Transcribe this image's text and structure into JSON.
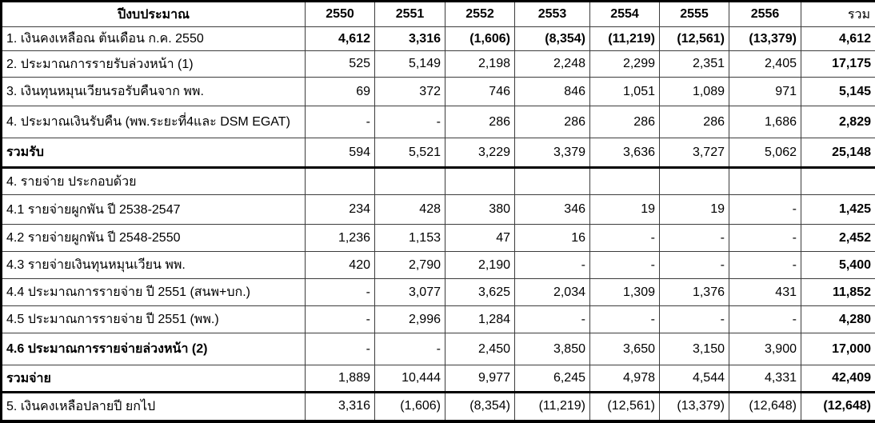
{
  "table": {
    "header": {
      "label_col": "ปีงบประมาณ",
      "years": [
        "2550",
        "2551",
        "2552",
        "2553",
        "2554",
        "2555",
        "2556"
      ],
      "total_label": "รวม"
    },
    "rows": [
      {
        "label": "1.  เงินคงเหลือณ ต้นเดือน ก.ค. 2550",
        "values": [
          "4,612",
          "3,316",
          "(1,606)",
          "(8,354)",
          "(11,219)",
          "(12,561)",
          "(13,379)"
        ],
        "total": "4,612",
        "label_bold": false,
        "values_bold": true,
        "total_bold": true,
        "indent": false
      },
      {
        "label": "2. ประมาณการรายรับล่วงหน้า (1)",
        "values": [
          "525",
          "5,149",
          "2,198",
          "2,248",
          "2,299",
          "2,351",
          "2,405"
        ],
        "total": "17,175",
        "label_bold": false,
        "values_bold": false,
        "total_bold": true,
        "indent": false
      },
      {
        "label": "3. เงินทุนหมุนเวียนรอรับคืนจาก พพ.",
        "values": [
          "69",
          "372",
          "746",
          "846",
          "1,051",
          "1,089",
          "971"
        ],
        "total": "5,145",
        "label_bold": false,
        "values_bold": false,
        "total_bold": true,
        "indent": false
      },
      {
        "label": "4. ประมาณเงินรับคืน (พพ.ระยะที่4และ DSM EGAT)",
        "values": [
          "-",
          "-",
          "286",
          "286",
          "286",
          "286",
          "1,686"
        ],
        "total": "2,829",
        "label_bold": false,
        "values_bold": false,
        "total_bold": true,
        "indent": false
      },
      {
        "label": "รวมรับ",
        "values": [
          "594",
          "5,521",
          "3,229",
          "3,379",
          "3,636",
          "3,727",
          "5,062"
        ],
        "total": "25,148",
        "label_bold": true,
        "values_bold": false,
        "total_bold": true,
        "indent": false
      },
      {
        "label": "4. รายจ่าย ประกอบด้วย",
        "values": [
          "",
          "",
          "",
          "",
          "",
          "",
          ""
        ],
        "total": "",
        "label_bold": false,
        "values_bold": false,
        "total_bold": false,
        "indent": false
      },
      {
        "label": "4.1 รายจ่ายผูกพัน ปี 2538-2547",
        "values": [
          "234",
          "428",
          "380",
          "346",
          "19",
          "19",
          "-"
        ],
        "total": "1,425",
        "label_bold": false,
        "values_bold": false,
        "total_bold": true,
        "indent": true
      },
      {
        "label": "4.2 รายจ่ายผูกพัน ปี 2548-2550",
        "values": [
          "1,236",
          "1,153",
          "47",
          "16",
          "-",
          "-",
          "-"
        ],
        "total": "2,452",
        "label_bold": false,
        "values_bold": false,
        "total_bold": true,
        "indent": true
      },
      {
        "label": "4.3 รายจ่ายเงินทุนหมุนเวียน พพ.",
        "values": [
          "420",
          "2,790",
          "2,190",
          "-",
          "-",
          "-",
          "-"
        ],
        "total": "5,400",
        "label_bold": false,
        "values_bold": false,
        "total_bold": true,
        "indent": true
      },
      {
        "label": "4.4 ประมาณการรายจ่าย ปี 2551 (สนพ+บก.)",
        "values": [
          "-",
          "3,077",
          "3,625",
          "2,034",
          "1,309",
          "1,376",
          "431"
        ],
        "total": "11,852",
        "label_bold": false,
        "values_bold": false,
        "total_bold": true,
        "indent": true
      },
      {
        "label": "4.5 ประมาณการรายจ่าย ปี 2551 (พพ.)",
        "values": [
          "-",
          "2,996",
          "1,284",
          "-",
          "-",
          "-",
          "-"
        ],
        "total": "4,280",
        "label_bold": false,
        "values_bold": false,
        "total_bold": true,
        "indent": true
      },
      {
        "label": "4.6 ประมาณการรายจ่ายล่วงหน้า (2)",
        "values": [
          "-",
          "-",
          "2,450",
          "3,850",
          "3,650",
          "3,150",
          "3,900"
        ],
        "total": "17,000",
        "label_bold": true,
        "values_bold": false,
        "total_bold": true,
        "indent": true
      },
      {
        "label": "รวมจ่าย",
        "values": [
          "1,889",
          "10,444",
          "9,977",
          "6,245",
          "4,978",
          "4,544",
          "4,331"
        ],
        "total": "42,409",
        "label_bold": true,
        "values_bold": false,
        "total_bold": true,
        "indent": false
      },
      {
        "label": "5.  เงินคงเหลือปลายปี ยกไป",
        "values": [
          "3,316",
          "(1,606)",
          "(8,354)",
          "(11,219)",
          "(12,561)",
          "(13,379)",
          "(12,648)"
        ],
        "total": "(12,648)",
        "label_bold": false,
        "values_bold": false,
        "total_bold": true,
        "indent": false
      }
    ]
  }
}
